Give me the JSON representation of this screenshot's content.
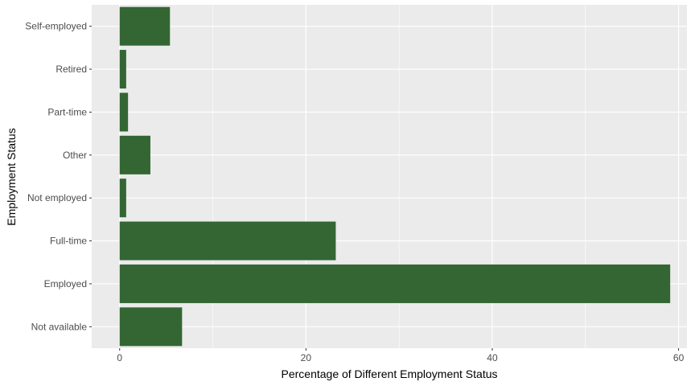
{
  "chart_data": {
    "type": "bar",
    "orientation": "horizontal",
    "categories": [
      "Not available",
      "Employed",
      "Full-time",
      "Not employed",
      "Other",
      "Part-time",
      "Retired",
      "Self-employed"
    ],
    "values": [
      6.7,
      59.1,
      23.2,
      0.7,
      3.3,
      0.9,
      0.7,
      5.4
    ],
    "title": "",
    "xlabel": "Percentage of Different Employment Status",
    "ylabel": "Employment Status",
    "xlim": [
      -3,
      60.9
    ],
    "xticks": [
      0,
      20,
      40,
      60
    ],
    "grid": true,
    "legend": "none",
    "colors": {
      "bar": "#336633",
      "panel": "#ebebeb",
      "grid_major": "#ffffff",
      "tick_text": "#4d4d4d",
      "axis_title": "#000000"
    }
  }
}
